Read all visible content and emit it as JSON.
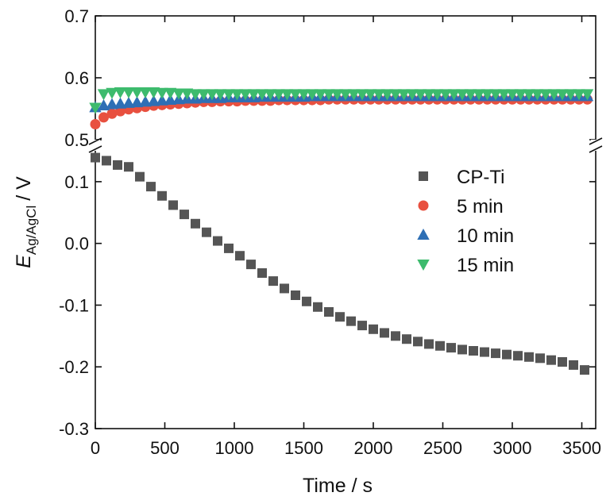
{
  "chart_data": {
    "type": "scatter",
    "xlabel": "Time / s",
    "ylabel": {
      "symbol": "E",
      "subscript": "Ag/AgCl",
      "unit": "/ V"
    },
    "xlim": [
      0,
      3600
    ],
    "x_ticks": [
      "0",
      "500",
      "1000",
      "1500",
      "2000",
      "2500",
      "3000",
      "3500"
    ],
    "y_axis": {
      "broken": true,
      "lower_range": [
        -0.3,
        0.15
      ],
      "upper_range": [
        0.5,
        0.7
      ],
      "lower_ticks": [
        "-0.3",
        "-0.2",
        "-0.1",
        "0.0",
        "0.1"
      ],
      "upper_ticks": [
        "0.5",
        "0.6",
        "0.7"
      ]
    },
    "legend": {
      "placement": "center-right"
    },
    "series": [
      {
        "name": "CP-Ti",
        "marker": "square",
        "color": "#555555",
        "points": [
          [
            0,
            0.139
          ],
          [
            80,
            0.134
          ],
          [
            160,
            0.127
          ],
          [
            240,
            0.124
          ],
          [
            320,
            0.108
          ],
          [
            400,
            0.092
          ],
          [
            480,
            0.077
          ],
          [
            560,
            0.062
          ],
          [
            640,
            0.047
          ],
          [
            720,
            0.032
          ],
          [
            800,
            0.018
          ],
          [
            880,
            0.004
          ],
          [
            960,
            -0.008
          ],
          [
            1040,
            -0.02
          ],
          [
            1120,
            -0.034
          ],
          [
            1200,
            -0.048
          ],
          [
            1280,
            -0.061
          ],
          [
            1360,
            -0.073
          ],
          [
            1440,
            -0.084
          ],
          [
            1520,
            -0.094
          ],
          [
            1600,
            -0.103
          ],
          [
            1680,
            -0.111
          ],
          [
            1760,
            -0.119
          ],
          [
            1840,
            -0.126
          ],
          [
            1920,
            -0.133
          ],
          [
            2000,
            -0.139
          ],
          [
            2080,
            -0.145
          ],
          [
            2160,
            -0.15
          ],
          [
            2240,
            -0.155
          ],
          [
            2320,
            -0.159
          ],
          [
            2400,
            -0.163
          ],
          [
            2480,
            -0.166
          ],
          [
            2560,
            -0.169
          ],
          [
            2640,
            -0.172
          ],
          [
            2720,
            -0.174
          ],
          [
            2800,
            -0.176
          ],
          [
            2880,
            -0.178
          ],
          [
            2960,
            -0.18
          ],
          [
            3040,
            -0.182
          ],
          [
            3120,
            -0.184
          ],
          [
            3200,
            -0.186
          ],
          [
            3280,
            -0.189
          ],
          [
            3360,
            -0.192
          ],
          [
            3440,
            -0.197
          ],
          [
            3520,
            -0.205
          ]
        ]
      },
      {
        "name": "5 min",
        "marker": "circle",
        "color": "#e8503f",
        "points": [
          [
            0,
            0.525
          ],
          [
            60,
            0.536
          ],
          [
            120,
            0.542
          ],
          [
            180,
            0.546
          ],
          [
            240,
            0.549
          ],
          [
            300,
            0.551
          ],
          [
            360,
            0.553
          ],
          [
            420,
            0.555
          ],
          [
            480,
            0.556
          ],
          [
            540,
            0.557
          ],
          [
            600,
            0.558
          ],
          [
            660,
            0.559
          ],
          [
            720,
            0.56
          ],
          [
            780,
            0.561
          ],
          [
            840,
            0.561
          ],
          [
            900,
            0.562
          ],
          [
            960,
            0.562
          ],
          [
            1020,
            0.562
          ],
          [
            1080,
            0.563
          ],
          [
            1140,
            0.563
          ],
          [
            1200,
            0.563
          ],
          [
            1260,
            0.563
          ],
          [
            1320,
            0.564
          ],
          [
            1380,
            0.564
          ],
          [
            1440,
            0.564
          ],
          [
            1500,
            0.564
          ],
          [
            1560,
            0.564
          ],
          [
            1620,
            0.564
          ],
          [
            1680,
            0.565
          ],
          [
            1740,
            0.565
          ],
          [
            1800,
            0.565
          ],
          [
            1860,
            0.565
          ],
          [
            1920,
            0.565
          ],
          [
            1980,
            0.565
          ],
          [
            2040,
            0.565
          ],
          [
            2100,
            0.565
          ],
          [
            2160,
            0.565
          ],
          [
            2220,
            0.565
          ],
          [
            2280,
            0.565
          ],
          [
            2340,
            0.565
          ],
          [
            2400,
            0.565
          ],
          [
            2460,
            0.565
          ],
          [
            2520,
            0.565
          ],
          [
            2580,
            0.565
          ],
          [
            2640,
            0.565
          ],
          [
            2700,
            0.565
          ],
          [
            2760,
            0.565
          ],
          [
            2820,
            0.565
          ],
          [
            2880,
            0.565
          ],
          [
            2940,
            0.565
          ],
          [
            3000,
            0.565
          ],
          [
            3060,
            0.565
          ],
          [
            3120,
            0.565
          ],
          [
            3180,
            0.565
          ],
          [
            3240,
            0.565
          ],
          [
            3300,
            0.565
          ],
          [
            3360,
            0.565
          ],
          [
            3420,
            0.565
          ],
          [
            3480,
            0.565
          ],
          [
            3540,
            0.565
          ]
        ]
      },
      {
        "name": "10 min",
        "marker": "triangle-up",
        "color": "#2e6fb5",
        "points": [
          [
            0,
            0.552
          ],
          [
            60,
            0.555
          ],
          [
            120,
            0.557
          ],
          [
            180,
            0.558
          ],
          [
            240,
            0.559
          ],
          [
            300,
            0.56
          ],
          [
            360,
            0.561
          ],
          [
            420,
            0.562
          ],
          [
            480,
            0.563
          ],
          [
            540,
            0.564
          ],
          [
            600,
            0.565
          ],
          [
            660,
            0.566
          ],
          [
            720,
            0.566
          ],
          [
            780,
            0.567
          ],
          [
            840,
            0.567
          ],
          [
            900,
            0.567
          ],
          [
            960,
            0.568
          ],
          [
            1020,
            0.568
          ],
          [
            1080,
            0.568
          ],
          [
            1140,
            0.568
          ],
          [
            1200,
            0.569
          ],
          [
            1260,
            0.569
          ],
          [
            1320,
            0.569
          ],
          [
            1380,
            0.569
          ],
          [
            1440,
            0.569
          ],
          [
            1500,
            0.569
          ],
          [
            1560,
            0.57
          ],
          [
            1620,
            0.57
          ],
          [
            1680,
            0.57
          ],
          [
            1740,
            0.57
          ],
          [
            1800,
            0.57
          ],
          [
            1860,
            0.57
          ],
          [
            1920,
            0.57
          ],
          [
            1980,
            0.57
          ],
          [
            2040,
            0.57
          ],
          [
            2100,
            0.57
          ],
          [
            2160,
            0.57
          ],
          [
            2220,
            0.57
          ],
          [
            2280,
            0.57
          ],
          [
            2340,
            0.57
          ],
          [
            2400,
            0.57
          ],
          [
            2460,
            0.57
          ],
          [
            2520,
            0.57
          ],
          [
            2580,
            0.57
          ],
          [
            2640,
            0.57
          ],
          [
            2700,
            0.57
          ],
          [
            2760,
            0.57
          ],
          [
            2820,
            0.57
          ],
          [
            2880,
            0.57
          ],
          [
            2940,
            0.57
          ],
          [
            3000,
            0.57
          ],
          [
            3060,
            0.57
          ],
          [
            3120,
            0.57
          ],
          [
            3180,
            0.57
          ],
          [
            3240,
            0.57
          ],
          [
            3300,
            0.57
          ],
          [
            3360,
            0.57
          ],
          [
            3420,
            0.57
          ],
          [
            3480,
            0.57
          ],
          [
            3540,
            0.57
          ]
        ]
      },
      {
        "name": "15 min",
        "marker": "triangle-down",
        "color": "#3dbb6d",
        "points": [
          [
            0,
            0.552
          ],
          [
            60,
            0.574
          ],
          [
            120,
            0.576
          ],
          [
            180,
            0.577
          ],
          [
            240,
            0.577
          ],
          [
            300,
            0.577
          ],
          [
            360,
            0.577
          ],
          [
            420,
            0.577
          ],
          [
            480,
            0.576
          ],
          [
            540,
            0.576
          ],
          [
            600,
            0.575
          ],
          [
            660,
            0.575
          ],
          [
            720,
            0.574
          ],
          [
            780,
            0.574
          ],
          [
            840,
            0.574
          ],
          [
            900,
            0.574
          ],
          [
            960,
            0.574
          ],
          [
            1020,
            0.574
          ],
          [
            1080,
            0.574
          ],
          [
            1140,
            0.574
          ],
          [
            1200,
            0.574
          ],
          [
            1260,
            0.574
          ],
          [
            1320,
            0.574
          ],
          [
            1380,
            0.574
          ],
          [
            1440,
            0.574
          ],
          [
            1500,
            0.574
          ],
          [
            1560,
            0.574
          ],
          [
            1620,
            0.574
          ],
          [
            1680,
            0.574
          ],
          [
            1740,
            0.574
          ],
          [
            1800,
            0.574
          ],
          [
            1860,
            0.574
          ],
          [
            1920,
            0.574
          ],
          [
            1980,
            0.574
          ],
          [
            2040,
            0.574
          ],
          [
            2100,
            0.574
          ],
          [
            2160,
            0.574
          ],
          [
            2220,
            0.574
          ],
          [
            2280,
            0.574
          ],
          [
            2340,
            0.574
          ],
          [
            2400,
            0.574
          ],
          [
            2460,
            0.574
          ],
          [
            2520,
            0.574
          ],
          [
            2580,
            0.574
          ],
          [
            2640,
            0.574
          ],
          [
            2700,
            0.574
          ],
          [
            2760,
            0.574
          ],
          [
            2820,
            0.574
          ],
          [
            2880,
            0.574
          ],
          [
            2940,
            0.574
          ],
          [
            3000,
            0.574
          ],
          [
            3060,
            0.574
          ],
          [
            3120,
            0.574
          ],
          [
            3180,
            0.574
          ],
          [
            3240,
            0.574
          ],
          [
            3300,
            0.574
          ],
          [
            3360,
            0.574
          ],
          [
            3420,
            0.574
          ],
          [
            3480,
            0.574
          ],
          [
            3540,
            0.574
          ]
        ]
      }
    ]
  }
}
